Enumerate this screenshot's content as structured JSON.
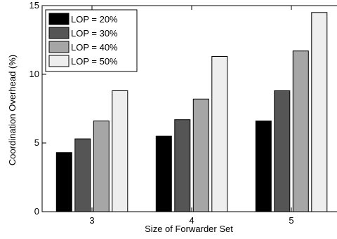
{
  "chart_data": {
    "type": "bar",
    "xlabel": "Size of Forwarder Set",
    "ylabel": "Coordination Overhead (%)",
    "categories": [
      "3",
      "4",
      "5"
    ],
    "ylim": [
      0,
      15
    ],
    "yticks": [
      "0",
      "5",
      "10",
      "15"
    ],
    "grid": false,
    "legend_position": "top-left",
    "series": [
      {
        "name": "LOP = 20%",
        "color": "#000000",
        "values": [
          4.3,
          5.5,
          6.6
        ]
      },
      {
        "name": "LOP = 30%",
        "color": "#555555",
        "values": [
          5.3,
          6.7,
          8.8
        ]
      },
      {
        "name": "LOP = 40%",
        "color": "#a6a6a6",
        "values": [
          6.6,
          8.2,
          11.7
        ]
      },
      {
        "name": "LOP = 50%",
        "color": "#eeeeee",
        "values": [
          8.8,
          11.3,
          14.5
        ]
      }
    ]
  }
}
